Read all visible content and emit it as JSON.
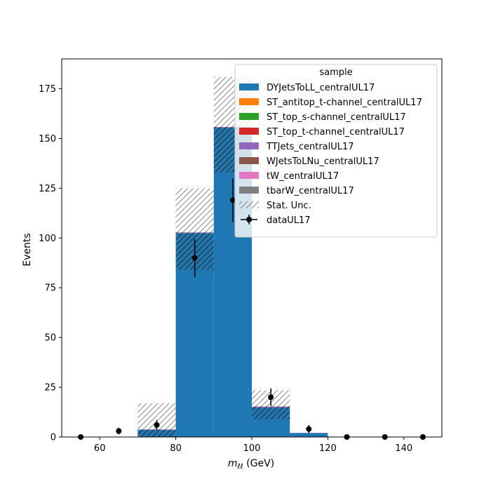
{
  "chart_data": {
    "type": "bar",
    "xlabel_main": "m",
    "xlabel_sub": "ℓℓ",
    "xlabel_unit": " (GeV)",
    "ylabel": "Events",
    "xlim": [
      50,
      150
    ],
    "ylim": [
      0,
      190
    ],
    "xticks": [
      60,
      80,
      100,
      120,
      140
    ],
    "yticks": [
      0,
      25,
      50,
      75,
      100,
      125,
      150,
      175
    ],
    "bin_edges": [
      50,
      60,
      70,
      80,
      90,
      100,
      110,
      120,
      130,
      140,
      150
    ],
    "stack": [
      {
        "name": "DYJetsToLL_centralUL17",
        "color": "#1f77b4",
        "values": [
          0,
          0,
          3.6,
          102.5,
          155.5,
          14.8,
          2.0,
          0,
          0,
          0
        ]
      },
      {
        "name": "ST_antitop_t-channel_centralUL17",
        "color": "#ff7f0e",
        "values": [
          0,
          0,
          0,
          0,
          0,
          0,
          0,
          0,
          0,
          0
        ]
      },
      {
        "name": "ST_top_s-channel_centralUL17",
        "color": "#2ca02c",
        "values": [
          0,
          0,
          0,
          0,
          0,
          0,
          0,
          0,
          0,
          0
        ]
      },
      {
        "name": "ST_top_t-channel_centralUL17",
        "color": "#d62728",
        "values": [
          0,
          0,
          0,
          0,
          0,
          0,
          0,
          0,
          0,
          0
        ]
      },
      {
        "name": "TTJets_centralUL17",
        "color": "#9467bd",
        "values": [
          0,
          0,
          0.2,
          0.3,
          0.3,
          0.5,
          0.1,
          0,
          0,
          0
        ]
      },
      {
        "name": "WJetsToLNu_centralUL17",
        "color": "#8c564b",
        "values": [
          0,
          0,
          0,
          0,
          0,
          0,
          0,
          0,
          0,
          0
        ]
      },
      {
        "name": "tW_centralUL17",
        "color": "#e377c2",
        "values": [
          0,
          0,
          0,
          0,
          0,
          0,
          0,
          0,
          0,
          0
        ]
      },
      {
        "name": "tbarW_centralUL17",
        "color": "#7f7f7f",
        "values": [
          0,
          0,
          0,
          0,
          0,
          0,
          0,
          0,
          0,
          0
        ]
      }
    ],
    "stat_unc": {
      "name": "Stat. Unc.",
      "low": [
        0,
        0,
        0,
        84,
        133,
        9,
        2,
        0,
        0,
        0
      ],
      "high": [
        0,
        0,
        17,
        125,
        181,
        23.5,
        2,
        0,
        0,
        0
      ]
    },
    "data": {
      "name": "dataUL17",
      "x": [
        55,
        65,
        75,
        85,
        95,
        105,
        115,
        125,
        135,
        145
      ],
      "y": [
        0,
        3,
        6,
        90,
        119,
        20,
        4,
        0,
        0,
        0
      ],
      "yerr": [
        0,
        1.7,
        2.5,
        9.5,
        11,
        4.5,
        2,
        0,
        0,
        0
      ]
    },
    "legend_title": "sample",
    "legend_loc": "upper right",
    "grid": false
  }
}
